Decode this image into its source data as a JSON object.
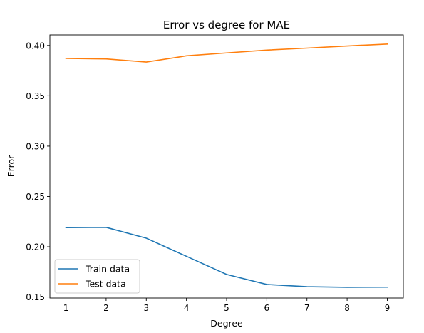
{
  "chart_data": {
    "type": "line",
    "title": "Error vs degree for MAE",
    "xlabel": "Degree",
    "ylabel": "Error",
    "x": [
      1,
      2,
      3,
      4,
      5,
      6,
      7,
      8,
      9
    ],
    "xticks": [
      "1",
      "2",
      "3",
      "4",
      "5",
      "6",
      "7",
      "8",
      "9"
    ],
    "xlim": [
      0.6,
      9.4
    ],
    "yticks": [
      "0.15",
      "0.20",
      "0.25",
      "0.30",
      "0.35",
      "0.40"
    ],
    "ylim": [
      0.149,
      0.4105
    ],
    "grid": false,
    "legend_position": "lower-left",
    "series": [
      {
        "name": "Train data",
        "color": "#1f77b4",
        "values": [
          0.219,
          0.2193,
          0.2085,
          0.1905,
          0.1725,
          0.1625,
          0.1603,
          0.1597,
          0.1598
        ]
      },
      {
        "name": "Test data",
        "color": "#ff7f0e",
        "values": [
          0.3871,
          0.3866,
          0.3835,
          0.3897,
          0.3926,
          0.3954,
          0.3974,
          0.3995,
          0.4014
        ]
      }
    ]
  }
}
